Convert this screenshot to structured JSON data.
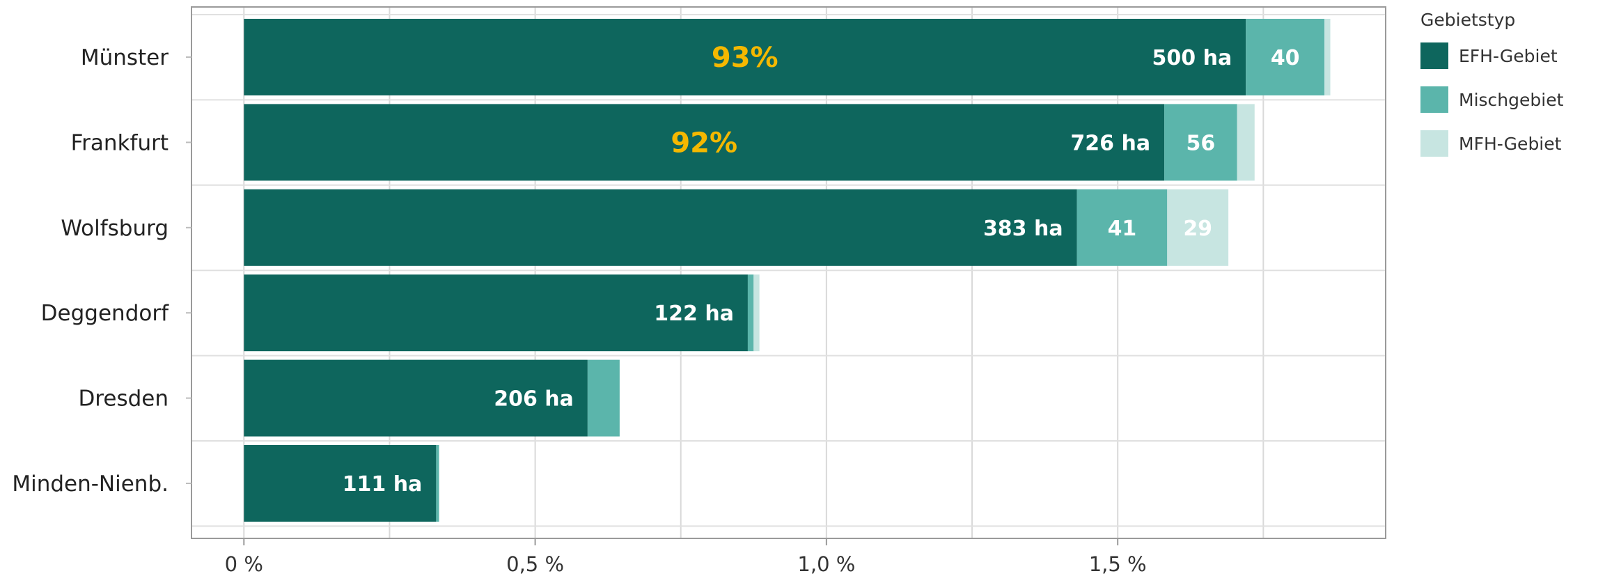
{
  "chart_data": {
    "type": "bar",
    "orientation": "horizontal",
    "stacked": true,
    "categories": [
      "Münster",
      "Frankfurt",
      "Wolfsburg",
      "Deggendorf",
      "Dresden",
      "Minden-Nienb."
    ],
    "series": [
      {
        "name": "EFH-Gebiet",
        "color": "#0e665d",
        "values": [
          1.72,
          1.58,
          1.43,
          0.865,
          0.59,
          0.33
        ]
      },
      {
        "name": "Mischgebiet",
        "color": "#5bb5ab",
        "values": [
          0.135,
          0.125,
          0.155,
          0.01,
          0.055,
          0.005
        ]
      },
      {
        "name": "MFH-Gebiet",
        "color": "#c7e5e1",
        "values": [
          0.01,
          0.03,
          0.105,
          0.01,
          0.0,
          0.0
        ]
      }
    ],
    "data_labels": {
      "efh": [
        "500 ha",
        "726 ha",
        "383 ha",
        "122 ha",
        "206 ha",
        "111 ha"
      ],
      "misch": [
        "40",
        "56",
        "41",
        "",
        "",
        ""
      ],
      "mfh": [
        "",
        "",
        "29",
        "",
        "",
        ""
      ],
      "share": [
        "93%",
        "92%",
        "",
        "",
        "",
        ""
      ]
    },
    "share_color": "#f5b800",
    "x_ticks": [
      0,
      0.5,
      1.0,
      1.5
    ],
    "x_tick_labels": [
      "0 %",
      "0,5 %",
      "1,0 %",
      "1,5 %"
    ],
    "x_minor_ticks": [
      0.25,
      0.75,
      1.25,
      1.75
    ],
    "xlim": [
      -0.09,
      1.96
    ],
    "grid": true,
    "legend": {
      "title": "Gebietstyp",
      "placement": "right"
    },
    "xlabel": "",
    "ylabel": "",
    "title": ""
  }
}
